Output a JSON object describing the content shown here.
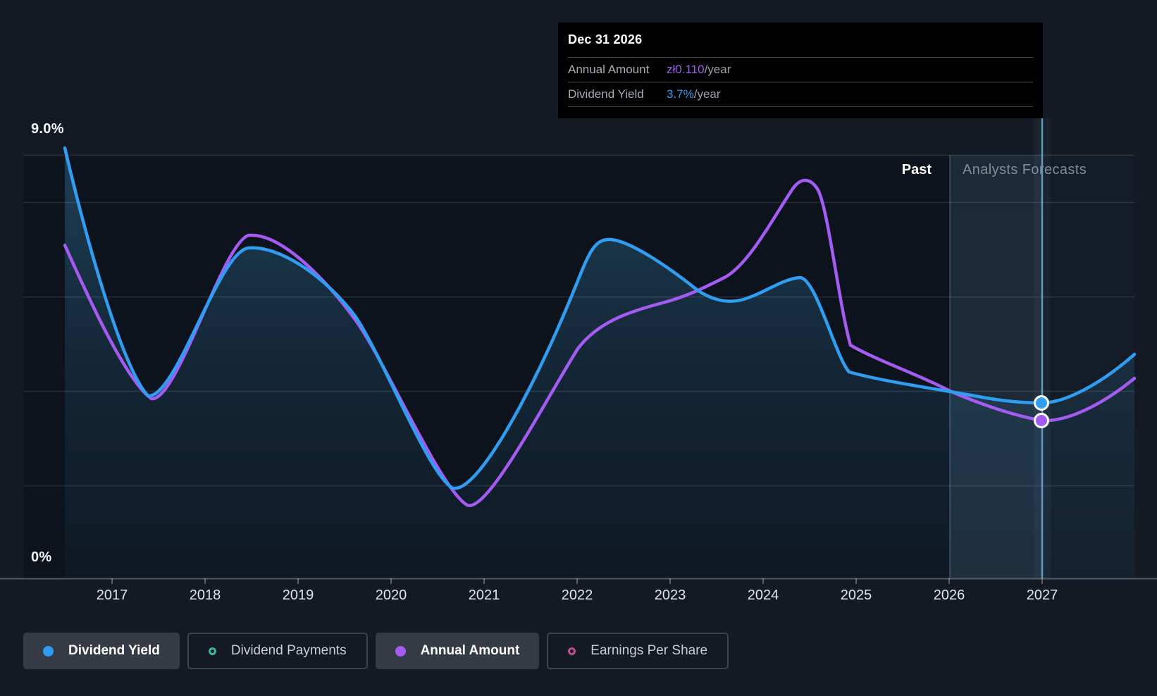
{
  "header_tooltip": {
    "date": "Dec 31 2026",
    "rows": [
      {
        "label": "Annual Amount",
        "value": "zł0.110",
        "suffix": "/year",
        "value_color": "#a35bf2"
      },
      {
        "label": "Dividend Yield",
        "value": "3.7%",
        "suffix": "/year",
        "value_color": "#2f9ef2"
      }
    ]
  },
  "y_axis": {
    "max_label": "9.0%",
    "min_label": "0%"
  },
  "x_axis": {
    "years": [
      "2017",
      "2018",
      "2019",
      "2020",
      "2021",
      "2022",
      "2023",
      "2024",
      "2025",
      "2026",
      "2027"
    ]
  },
  "regions": {
    "past_label": "Past",
    "forecast_label": "Analysts Forecasts"
  },
  "legend": [
    {
      "label": "Dividend Yield",
      "color": "#2f9ef2",
      "style": "filled",
      "active": true
    },
    {
      "label": "Dividend Payments",
      "color": "#3ab5a3",
      "style": "outline",
      "active": false
    },
    {
      "label": "Annual Amount",
      "color": "#a35bf2",
      "style": "filled",
      "active": true
    },
    {
      "label": "Earnings Per Share",
      "color": "#c44b90",
      "style": "outline",
      "active": false
    }
  ],
  "chart_data": {
    "type": "line",
    "title": "",
    "grid": "horizontal",
    "legend_position": "bottom",
    "x_range": [
      2016.55,
      2028.0
    ],
    "x_ticks": [
      2017,
      2018,
      2019,
      2020,
      2021,
      2022,
      2023,
      2024,
      2025,
      2026,
      2027
    ],
    "ylim_pct": [
      0,
      9.0
    ],
    "y_top_label": "9.0%",
    "y_bottom_label": "0%",
    "past_forecast_divider_x": 2026.0,
    "selected_point": {
      "x_date": "Dec 31 2026",
      "dividend_yield_pct": 3.7,
      "annual_amount_zl_per_year": 0.11
    },
    "series": [
      {
        "name": "Dividend Yield",
        "unit": "%",
        "color": "#2f9ef2",
        "area_fill": true,
        "points": [
          [
            2016.55,
            9.0
          ],
          [
            2017.0,
            5.3
          ],
          [
            2017.4,
            3.9
          ],
          [
            2018.0,
            5.9
          ],
          [
            2018.5,
            7.0
          ],
          [
            2019.0,
            6.7
          ],
          [
            2019.5,
            5.9
          ],
          [
            2020.0,
            4.5
          ],
          [
            2020.75,
            1.9
          ],
          [
            2021.0,
            2.1
          ],
          [
            2021.5,
            4.1
          ],
          [
            2022.0,
            6.2
          ],
          [
            2022.35,
            7.2
          ],
          [
            2023.0,
            6.6
          ],
          [
            2023.55,
            5.9
          ],
          [
            2024.0,
            6.2
          ],
          [
            2024.4,
            6.4
          ],
          [
            2025.0,
            4.4
          ],
          [
            2026.0,
            4.0
          ],
          [
            2027.0,
            3.7
          ],
          [
            2028.0,
            4.8
          ]
        ]
      },
      {
        "name": "Annual Amount",
        "unit": "zł/year",
        "color": "#a35bf2",
        "area_fill": false,
        "points": [
          [
            2016.55,
            0.23
          ],
          [
            2017.0,
            0.17
          ],
          [
            2017.45,
            0.125
          ],
          [
            2018.0,
            0.18
          ],
          [
            2018.55,
            0.238
          ],
          [
            2019.0,
            0.21
          ],
          [
            2020.0,
            0.15
          ],
          [
            2020.85,
            0.052
          ],
          [
            2021.0,
            0.06
          ],
          [
            2022.0,
            0.16
          ],
          [
            2023.0,
            0.19
          ],
          [
            2024.0,
            0.235
          ],
          [
            2024.45,
            0.275
          ],
          [
            2025.0,
            0.16
          ],
          [
            2026.0,
            0.13
          ],
          [
            2027.0,
            0.11
          ],
          [
            2028.0,
            0.139
          ]
        ]
      }
    ]
  }
}
